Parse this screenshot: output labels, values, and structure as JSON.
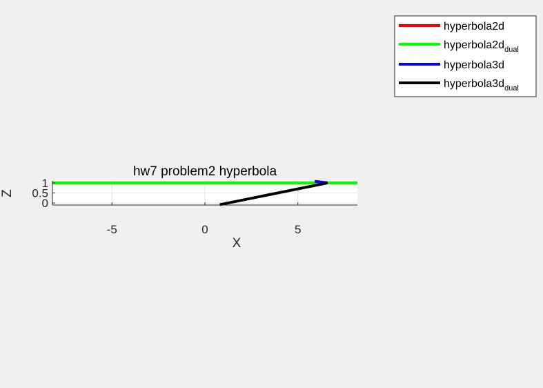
{
  "chart_data": {
    "type": "line",
    "title": "hw7 problem2 hyperbola",
    "xlabel": "X",
    "ylabel": "Z",
    "xlim": [
      -8.2,
      8.2
    ],
    "ylim": [
      -0.1,
      1.1
    ],
    "xticks": [
      -5,
      0,
      5
    ],
    "xtick_labels": [
      "-5",
      "0",
      "5"
    ],
    "yticks": [
      0,
      0.5,
      1
    ],
    "ytick_labels": [
      "0",
      "0.5",
      "1"
    ],
    "grid": true,
    "legend_placement": "top-right",
    "series": [
      {
        "name": "hyperbola2d",
        "name_sub": "",
        "color": "#ff0000",
        "x": [
          -8.2,
          8.2
        ],
        "z": [
          1,
          1
        ]
      },
      {
        "name": "hyperbola2d",
        "name_sub": "dual",
        "color": "#00ff00",
        "x": [
          -8.2,
          8.2
        ],
        "z": [
          1,
          1
        ]
      },
      {
        "name": "hyperbola3d",
        "name_sub": "",
        "color": "#0000ff",
        "x": [
          5.9,
          6.6
        ],
        "z": [
          1.08,
          1.0
        ]
      },
      {
        "name": "hyperbola3d",
        "name_sub": "dual",
        "color": "#000000",
        "x": [
          0.8,
          6.6
        ],
        "z": [
          -0.08,
          1.0
        ]
      }
    ]
  }
}
